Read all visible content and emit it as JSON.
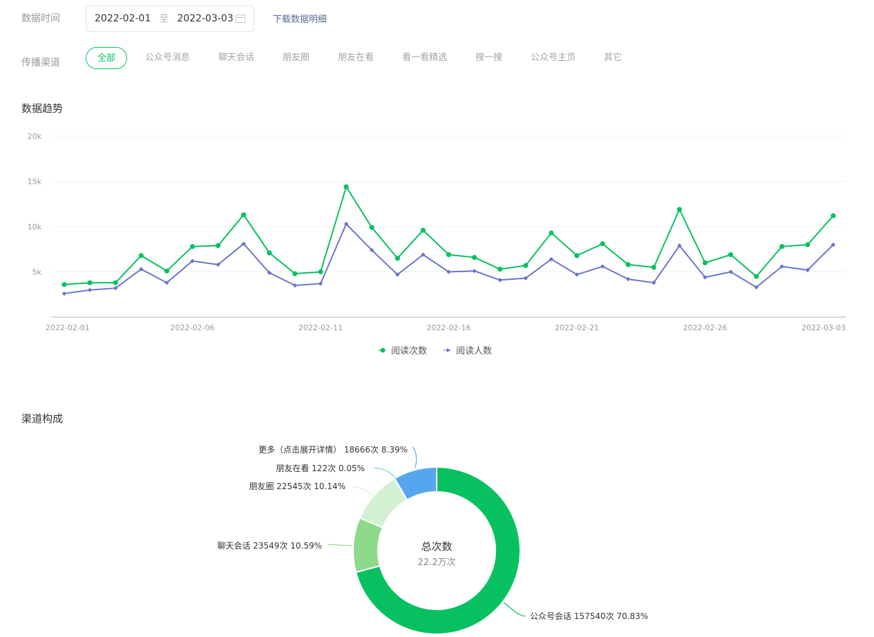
{
  "filters": {
    "time_label": "数据时间",
    "start_date": "2022-02-01",
    "separator": "至",
    "end_date": "2022-03-03",
    "download_label": "下载数据明细",
    "channel_label": "传播渠道",
    "channels": [
      "全部",
      "公众号消息",
      "聊天会话",
      "朋友圈",
      "朋友在看",
      "看一看精选",
      "搜一搜",
      "公众号主页",
      "其它"
    ],
    "active_channel": "全部"
  },
  "sections": {
    "trend_title": "数据趋势",
    "composition_title": "渠道构成"
  },
  "colors": {
    "accent": "#07c160",
    "link": "#576b95",
    "reads": "#07c160",
    "readers": "#6b75c9",
    "pie": [
      "#07c160",
      "#8fd98a",
      "#d4f0d3",
      "#bfe8f3",
      "#55a6ef"
    ]
  },
  "chart_data": [
    {
      "type": "line",
      "title": "数据趋势",
      "xlabel": "",
      "ylabel": "",
      "ylim": [
        0,
        20000
      ],
      "y_ticks": [
        "5k",
        "10k",
        "15k",
        "20k"
      ],
      "x_tick_labels": [
        "2022-02-01",
        "2022-02-06",
        "2022-02-11",
        "2022-02-16",
        "2022-02-21",
        "2022-02-26",
        "2022-03-03"
      ],
      "x": [
        "2022-02-01",
        "2022-02-02",
        "2022-02-03",
        "2022-02-04",
        "2022-02-05",
        "2022-02-06",
        "2022-02-07",
        "2022-02-08",
        "2022-02-09",
        "2022-02-10",
        "2022-02-11",
        "2022-02-12",
        "2022-02-13",
        "2022-02-14",
        "2022-02-15",
        "2022-02-16",
        "2022-02-17",
        "2022-02-18",
        "2022-02-19",
        "2022-02-20",
        "2022-02-21",
        "2022-02-22",
        "2022-02-23",
        "2022-02-24",
        "2022-02-25",
        "2022-02-26",
        "2022-02-27",
        "2022-02-28",
        "2022-03-01",
        "2022-03-02",
        "2022-03-03"
      ],
      "series": [
        {
          "name": "阅读次数",
          "marker": "circle",
          "values": [
            3600,
            3800,
            3800,
            6800,
            5100,
            7800,
            7900,
            11300,
            7100,
            4800,
            5000,
            14400,
            9900,
            6500,
            9600,
            6900,
            6600,
            5300,
            5700,
            9300,
            6800,
            8100,
            5800,
            5500,
            11900,
            6000,
            6900,
            4500,
            7800,
            8000,
            11200
          ]
        },
        {
          "name": "阅读人数",
          "marker": "diamond",
          "values": [
            2600,
            3000,
            3200,
            5300,
            3800,
            6200,
            5800,
            8100,
            4900,
            3500,
            3700,
            10300,
            7400,
            4700,
            6900,
            5000,
            5100,
            4100,
            4300,
            6400,
            4700,
            5600,
            4200,
            3800,
            7900,
            4400,
            5000,
            3300,
            5600,
            5200,
            8000
          ]
        }
      ],
      "legend": "bottom-center"
    },
    {
      "type": "pie",
      "donut": true,
      "center_title": "总次数",
      "center_value": "22.2万次",
      "slices": [
        {
          "name": "公众号会话",
          "value": 157540,
          "percent": 70.83,
          "label": "公众号会话 157540次 70.83%"
        },
        {
          "name": "聊天会话",
          "value": 23549,
          "percent": 10.59,
          "label": "聊天会话 23549次 10.59%"
        },
        {
          "name": "朋友圈",
          "value": 22545,
          "percent": 10.14,
          "label": "朋友圈 22545次 10.14%"
        },
        {
          "name": "朋友在看",
          "value": 122,
          "percent": 0.05,
          "label": "朋友在看 122次 0.05%"
        },
        {
          "name": "更多（点击展开详情）",
          "value": 18666,
          "percent": 8.39,
          "label": "更多（点击展开详情） 18666次 8.39%"
        }
      ]
    }
  ]
}
